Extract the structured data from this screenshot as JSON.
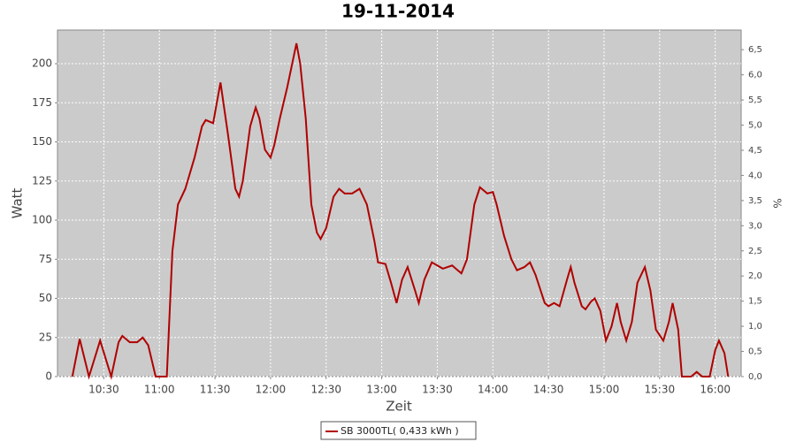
{
  "chart_data": {
    "type": "line",
    "title": "19-11-2014",
    "xlabel": "Zeit",
    "ylabel": "Watt",
    "y2label": "%",
    "x": [
      "10:13",
      "10:17",
      "10:22",
      "10:28",
      "10:34",
      "10:38",
      "10:40",
      "10:44",
      "10:48",
      "10:51",
      "10:54",
      "10:58",
      "11:04",
      "11:07",
      "11:10",
      "11:14",
      "11:19",
      "11:23",
      "11:25",
      "11:29",
      "11:33",
      "11:37",
      "11:41",
      "11:43",
      "11:45",
      "11:49",
      "11:52",
      "11:54",
      "11:57",
      "12:00",
      "12:02",
      "12:05",
      "12:09",
      "12:14",
      "12:16",
      "12:19",
      "12:22",
      "12:25",
      "12:27",
      "12:30",
      "12:34",
      "12:37",
      "12:40",
      "12:44",
      "12:48",
      "12:52",
      "12:56",
      "12:58",
      "13:02",
      "13:05",
      "13:08",
      "13:11",
      "13:14",
      "13:18",
      "13:20",
      "13:23",
      "13:27",
      "13:30",
      "13:33",
      "13:38",
      "13:41",
      "13:43",
      "13:46",
      "13:50",
      "13:53",
      "13:57",
      "14:00",
      "14:02",
      "14:06",
      "14:10",
      "14:13",
      "14:17",
      "14:20",
      "14:23",
      "14:28",
      "14:30",
      "14:33",
      "14:36",
      "14:40",
      "14:42",
      "14:44",
      "14:48",
      "14:50",
      "14:53",
      "14:55",
      "14:58",
      "15:01",
      "15:04",
      "15:07",
      "15:09",
      "15:12",
      "15:15",
      "15:18",
      "15:22",
      "15:25",
      "15:28",
      "15:32",
      "15:35",
      "15:37",
      "15:40",
      "15:42",
      "15:47",
      "15:50",
      "15:53",
      "15:57",
      "16:00",
      "16:02",
      "16:05",
      "16:07"
    ],
    "series": [
      {
        "name": "SB 3000TL( 0,433 kWh )",
        "color": "#b00000",
        "values": [
          0,
          24,
          0,
          23,
          0,
          22,
          26,
          22,
          22,
          25,
          20,
          0,
          0,
          80,
          110,
          120,
          140,
          160,
          164,
          162,
          188,
          155,
          120,
          115,
          125,
          160,
          172,
          165,
          145,
          140,
          148,
          165,
          185,
          213,
          200,
          165,
          110,
          92,
          88,
          95,
          115,
          120,
          117,
          117,
          120,
          110,
          87,
          73,
          72,
          60,
          47,
          62,
          70,
          55,
          47,
          62,
          73,
          71,
          69,
          71,
          68,
          66,
          75,
          110,
          121,
          117,
          118,
          110,
          90,
          75,
          68,
          70,
          73,
          65,
          47,
          45,
          47,
          45,
          62,
          70,
          60,
          45,
          43,
          48,
          50,
          42,
          23,
          32,
          47,
          35,
          23,
          35,
          60,
          70,
          55,
          30,
          23,
          35,
          47,
          30,
          0,
          0,
          3,
          0,
          0,
          17,
          23,
          15,
          0
        ]
      }
    ],
    "xlim": [
      "10:05",
      "16:14"
    ],
    "xticks": [
      "10:30",
      "11:00",
      "11:30",
      "12:00",
      "12:30",
      "13:00",
      "13:30",
      "14:00",
      "14:30",
      "15:00",
      "15:30",
      "16:00"
    ],
    "ylim": [
      0,
      221.5
    ],
    "yticks": [
      0,
      25,
      50,
      75,
      100,
      125,
      150,
      175,
      200
    ],
    "y2lim": [
      0,
      6.89
    ],
    "y2ticks": [
      {
        "value": 0,
        "label": "0,0"
      },
      {
        "value": 0.5,
        "label": "0,5"
      },
      {
        "value": 1,
        "label": "1,0"
      },
      {
        "value": 1.5,
        "label": "1,5"
      },
      {
        "value": 2,
        "label": "2,0"
      },
      {
        "value": 2.5,
        "label": "2,5"
      },
      {
        "value": 3,
        "label": "3,0"
      },
      {
        "value": 3.5,
        "label": "3,5"
      },
      {
        "value": 4,
        "label": "4,0"
      },
      {
        "value": 4.5,
        "label": "4,5"
      },
      {
        "value": 5,
        "label": "5,0"
      },
      {
        "value": 5.5,
        "label": "5,5"
      },
      {
        "value": 6,
        "label": "6,0"
      },
      {
        "value": 6.5,
        "label": "6,5"
      }
    ],
    "grid": true
  }
}
